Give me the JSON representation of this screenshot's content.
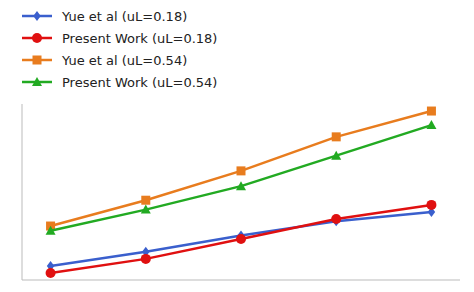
{
  "chart_data": {
    "type": "line",
    "x": [
      1,
      2,
      3,
      4,
      5
    ],
    "series": [
      {
        "name": "Yue et al (uL=0.18)",
        "color": "#3a5fcd",
        "marker": "diamond",
        "values": [
          0.12,
          0.24,
          0.38,
          0.5,
          0.58
        ]
      },
      {
        "name": "Present Work (uL=0.18)",
        "color": "#e01010",
        "marker": "circle",
        "values": [
          0.06,
          0.18,
          0.35,
          0.52,
          0.64
        ]
      },
      {
        "name": "Yue et al (uL=0.54)",
        "color": "#e87c1e",
        "marker": "square",
        "values": [
          0.46,
          0.68,
          0.93,
          1.22,
          1.44
        ]
      },
      {
        "name": "Present Work (uL=0.54)",
        "color": "#22aa22",
        "marker": "triangle",
        "values": [
          0.42,
          0.6,
          0.8,
          1.06,
          1.32
        ]
      }
    ],
    "xlim": [
      0.7,
      5.3
    ],
    "ylim": [
      0,
      1.5
    ],
    "tick_labels": false,
    "grid": false,
    "legend": "top"
  }
}
